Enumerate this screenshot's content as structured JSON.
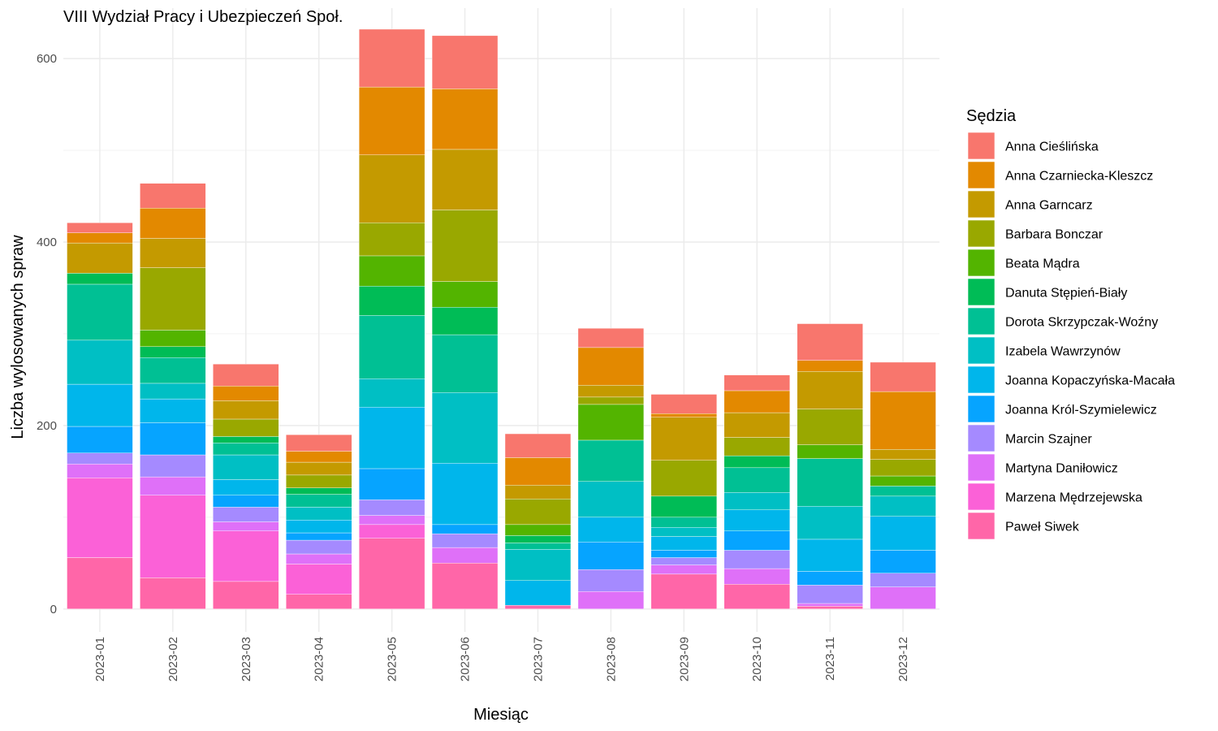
{
  "chart_data": {
    "type": "bar",
    "stacked": true,
    "title": "VIII Wydział Pracy i Ubezpieczeń Społ.",
    "xlabel": "Miesiąc",
    "ylabel": "Liczba wylosowanych spraw",
    "ylim": [
      -25,
      655
    ],
    "yticks": [
      0,
      200,
      400,
      600
    ],
    "grid": true,
    "legend_title": "Sędzia",
    "legend_position": "right",
    "categories": [
      "2023-01",
      "2023-02",
      "2023-03",
      "2023-04",
      "2023-05",
      "2023-06",
      "2023-07",
      "2023-08",
      "2023-09",
      "2023-10",
      "2023-11",
      "2023-12"
    ],
    "series": [
      {
        "name": "Anna Cieślińska",
        "color": "#F8766D",
        "values": [
          11,
          27,
          24,
          18,
          63,
          58,
          26,
          21,
          21,
          17,
          40,
          32
        ]
      },
      {
        "name": "Anna Czarniecka-Kleszcz",
        "color": "#E38900",
        "values": [
          11,
          33,
          16,
          12,
          74,
          66,
          30,
          41,
          4,
          24,
          12,
          63
        ]
      },
      {
        "name": "Anna Garncarz",
        "color": "#C49A00",
        "values": [
          33,
          32,
          20,
          14,
          74,
          66,
          15,
          13,
          47,
          27,
          41,
          11
        ]
      },
      {
        "name": "Barbara Bonczar",
        "color": "#99A800",
        "values": [
          0,
          68,
          19,
          14,
          36,
          78,
          28,
          8,
          39,
          20,
          39,
          18
        ]
      },
      {
        "name": "Beata Mądra",
        "color": "#53B400",
        "values": [
          0,
          18,
          0,
          0,
          33,
          28,
          12,
          39,
          0,
          0,
          15,
          11
        ]
      },
      {
        "name": "Danuta Stępień-Biały",
        "color": "#00BC56",
        "values": [
          12,
          12,
          7,
          7,
          32,
          30,
          8,
          0,
          23,
          13,
          0,
          0
        ]
      },
      {
        "name": "Dorota Skrzypczak-Woźny",
        "color": "#00C094",
        "values": [
          61,
          28,
          13,
          14,
          69,
          63,
          7,
          45,
          11,
          27,
          52,
          11
        ]
      },
      {
        "name": "Izabela Wawrzynów",
        "color": "#00BFC4",
        "values": [
          48,
          17,
          27,
          14,
          31,
          77,
          34,
          39,
          10,
          19,
          36,
          22
        ]
      },
      {
        "name": "Joanna Kopaczyńska-Macała",
        "color": "#00B6EB",
        "values": [
          46,
          26,
          17,
          14,
          67,
          67,
          27,
          27,
          15,
          23,
          35,
          37
        ]
      },
      {
        "name": "Joanna Król-Szymielewicz",
        "color": "#06A4FF",
        "values": [
          29,
          35,
          13,
          8,
          34,
          10,
          0,
          30,
          8,
          21,
          15,
          25
        ]
      },
      {
        "name": "Marcin Szajner",
        "color": "#A58AFF",
        "values": [
          12,
          24,
          16,
          15,
          17,
          15,
          0,
          24,
          8,
          20,
          20,
          15
        ]
      },
      {
        "name": "Martyna Daniłowicz",
        "color": "#DF70F8",
        "values": [
          15,
          20,
          10,
          11,
          10,
          17,
          0,
          19,
          10,
          17,
          3,
          24
        ]
      },
      {
        "name": "Marzena Mędrzejewska",
        "color": "#FB61D7",
        "values": [
          87,
          90,
          55,
          33,
          15,
          0,
          0,
          0,
          0,
          0,
          0,
          0
        ]
      },
      {
        "name": "Paweł Siwek",
        "color": "#FF66A8",
        "values": [
          56,
          34,
          30,
          16,
          77,
          50,
          4,
          0,
          38,
          27,
          3,
          0
        ]
      }
    ]
  }
}
